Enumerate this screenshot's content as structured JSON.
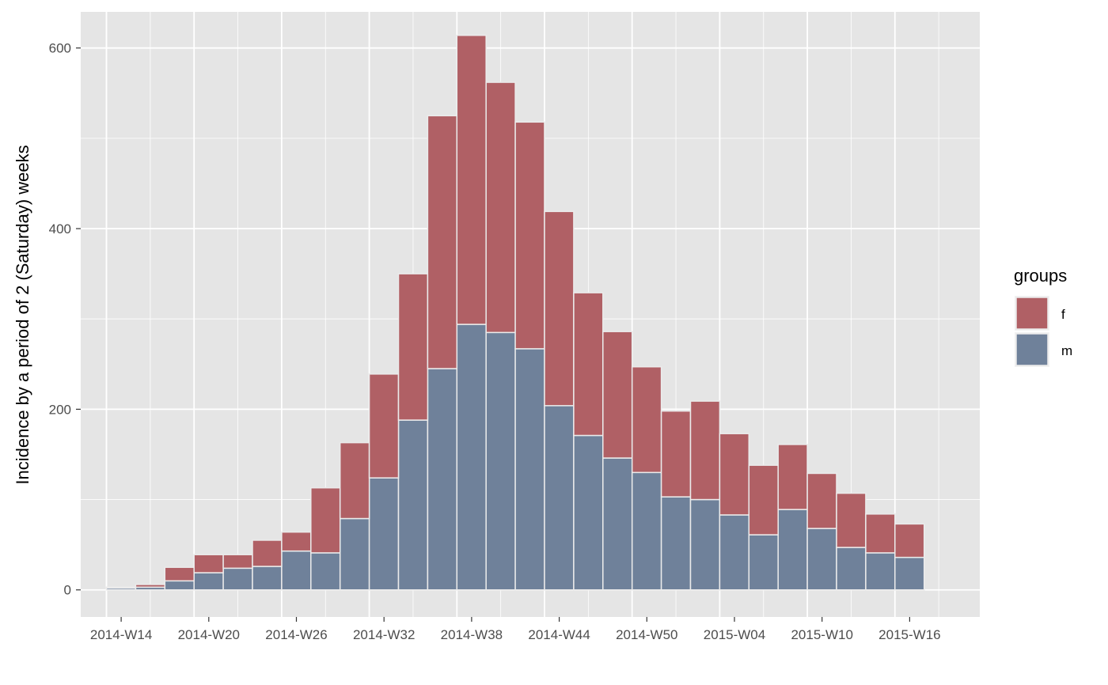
{
  "chart_data": {
    "type": "bar",
    "stacked": true,
    "title": "",
    "xlabel": "",
    "ylabel": "Incidence by a period of 2 (Saturday) weeks",
    "ylim": [
      -30,
      640
    ],
    "yticks": [
      0,
      200,
      400,
      600
    ],
    "grid": true,
    "legend_position": "right",
    "legend_title": "groups",
    "x_tick_labels": [
      "2014-W14",
      "2014-W20",
      "2014-W26",
      "2014-W32",
      "2014-W38",
      "2014-W44",
      "2014-W50",
      "2015-W04",
      "2015-W10",
      "2015-W16"
    ],
    "categories": [
      "2014-W14",
      "2014-W16",
      "2014-W18",
      "2014-W20",
      "2014-W22",
      "2014-W24",
      "2014-W26",
      "2014-W28",
      "2014-W30",
      "2014-W32",
      "2014-W34",
      "2014-W36",
      "2014-W38",
      "2014-W40",
      "2014-W42",
      "2014-W44",
      "2014-W46",
      "2014-W48",
      "2014-W50",
      "2014-W52",
      "2015-W02",
      "2015-W04",
      "2015-W06",
      "2015-W08",
      "2015-W10",
      "2015-W12",
      "2015-W14",
      "2015-W16"
    ],
    "series": [
      {
        "name": "m",
        "color": "#6f819a",
        "values": [
          2,
          3,
          10,
          19,
          24,
          26,
          43,
          41,
          79,
          124,
          188,
          245,
          294,
          285,
          267,
          204,
          171,
          146,
          130,
          103,
          100,
          83,
          61,
          89,
          68,
          47,
          41,
          36
        ]
      },
      {
        "name": "f",
        "color": "#b06065",
        "values": [
          1,
          3,
          15,
          20,
          15,
          29,
          21,
          72,
          84,
          115,
          162,
          280,
          320,
          277,
          251,
          215,
          158,
          140,
          117,
          95,
          109,
          90,
          77,
          72,
          61,
          60,
          43,
          37
        ]
      }
    ]
  },
  "colors": {
    "panel_background": "#e5e5e5",
    "grid_major": "#ffffff",
    "bar_outline": "#ebebeb"
  }
}
